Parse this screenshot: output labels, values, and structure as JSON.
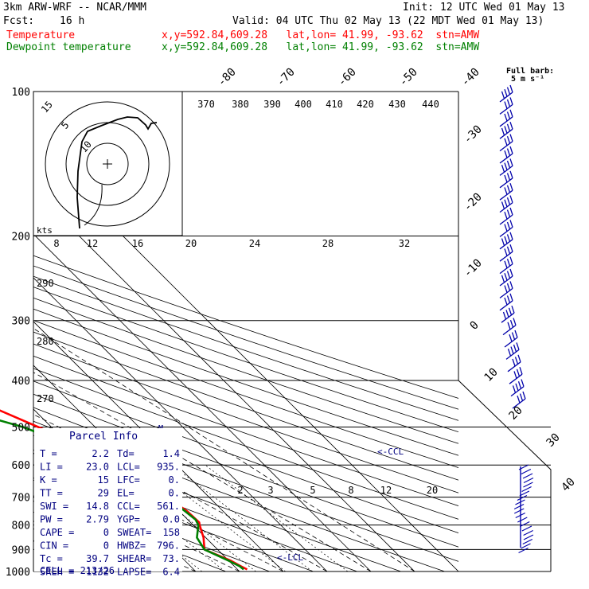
{
  "header": {
    "model": "3km ARW-WRF -- NCAR/MMM",
    "init": "Init: 12 UTC Wed 01 May 13",
    "fcst_label": "Fcst:",
    "fcst_value": "16 h",
    "valid": "Valid: 04 UTC Thu 02 May 13 (22 MDT Wed 01 May 13)",
    "legend": [
      {
        "name": "Temperature",
        "color": "#ff0000",
        "info": "x,y=592.84,609.28   lat,lon= 41.99, -93.62  stn=AMW"
      },
      {
        "name": "Dewpoint temperature",
        "color": "#008000",
        "info": "x,y=592.84,609.28   lat,lon= 41.99, -93.62  stn=AMW"
      }
    ],
    "barb_note_1": "Full barb:",
    "barb_note_2": "5 m s⁻¹"
  },
  "chart_data": {
    "type": "line",
    "diagram": "skew-T log-p",
    "pressure_ticks": [
      100,
      200,
      300,
      400,
      500,
      600,
      700,
      800,
      900,
      1000
    ],
    "temp_ticks_top": [
      -80,
      -70,
      -60,
      -50,
      -40
    ],
    "temp_ticks_right": [
      -30,
      -20,
      -10,
      0,
      10,
      20,
      30,
      40
    ],
    "theta_labels": [
      370,
      380,
      390,
      400,
      410,
      420,
      430,
      440
    ],
    "mixing_ratio_labels": [
      2,
      3,
      5,
      8,
      12,
      20
    ],
    "adiabat_labels": [
      290,
      280,
      270
    ],
    "series": [
      {
        "name": "Temperature",
        "color": "#ff0000",
        "points": [
          [
            100,
            -45.6
          ],
          [
            115,
            -48.7
          ],
          [
            130,
            -51.2
          ],
          [
            150,
            -55.3
          ],
          [
            168,
            -60
          ],
          [
            180,
            -62.5
          ],
          [
            200,
            -61
          ],
          [
            210,
            -59.5
          ],
          [
            250,
            -52.5
          ],
          [
            300,
            -43.6
          ],
          [
            350,
            -34.5
          ],
          [
            400,
            -26.5
          ],
          [
            450,
            -19.6
          ],
          [
            500,
            -13
          ],
          [
            550,
            -7
          ],
          [
            600,
            -2.5
          ],
          [
            650,
            -1
          ],
          [
            700,
            0.5
          ],
          [
            750,
            1.8
          ],
          [
            790,
            2
          ],
          [
            800,
            1.5
          ],
          [
            850,
            -0.5
          ],
          [
            900,
            -3
          ],
          [
            950,
            0.5
          ],
          [
            975,
            1.5
          ],
          [
            990,
            2.2
          ]
        ]
      },
      {
        "name": "Dewpoint temperature",
        "color": "#008000",
        "points": [
          [
            100,
            -85.5
          ],
          [
            130,
            -82
          ],
          [
            160,
            -80.5
          ],
          [
            190,
            -78.5
          ],
          [
            200,
            -77.5
          ],
          [
            250,
            -67
          ],
          [
            300,
            -58.3
          ],
          [
            340,
            -53
          ],
          [
            390,
            -47.2
          ],
          [
            420,
            -37
          ],
          [
            460,
            -26.5
          ],
          [
            500,
            -16.5
          ],
          [
            550,
            -9
          ],
          [
            600,
            -4
          ],
          [
            700,
            0.5
          ],
          [
            780,
            1.8
          ],
          [
            800,
            1.2
          ],
          [
            850,
            -2
          ],
          [
            900,
            -3
          ],
          [
            950,
            0
          ],
          [
            975,
            1.2
          ],
          [
            990,
            1.4
          ]
        ]
      }
    ],
    "hodograph": {
      "units_label": "kts",
      "ring_labels": [
        "15",
        "5",
        "10"
      ],
      "speed_ticks": [
        8,
        12,
        16,
        20,
        24,
        28,
        32
      ]
    },
    "annotations": {
      "ccl": "<-CCL",
      "lcl": "<-LCL",
      "marker": "M"
    }
  },
  "parcel_info": {
    "title": "Parcel Info",
    "rows": [
      [
        {
          "k": "T",
          "v": "2.2"
        },
        {
          "k": "Td",
          "v": "1.4"
        }
      ],
      [
        {
          "k": "LI",
          "v": "23.0"
        },
        {
          "k": "LCL",
          "v": "935."
        }
      ],
      [
        {
          "k": "K",
          "v": "15"
        },
        {
          "k": "LFC",
          "v": "0."
        }
      ],
      [
        {
          "k": "TT",
          "v": "29"
        },
        {
          "k": "EL",
          "v": "0."
        }
      ],
      [
        {
          "k": "SWI",
          "v": "14.8"
        },
        {
          "k": "CCL",
          "v": "561."
        }
      ],
      [
        {
          "k": "PW",
          "v": "2.79"
        },
        {
          "k": "YGP",
          "v": "0.0"
        }
      ],
      [
        {
          "k": "CAPE",
          "v": "0"
        },
        {
          "k": "SWEAT",
          "v": "158"
        }
      ],
      [
        {
          "k": "CIN",
          "v": "0"
        },
        {
          "k": "HWBZ",
          "v": "796."
        }
      ],
      [
        {
          "k": "Tc",
          "v": "39.7"
        },
        {
          "k": "SHEAR",
          "v": "73."
        }
      ],
      [
        {
          "k": "SREH",
          "v": "1132"
        },
        {
          "k": "LAPSE",
          "v": "6.4"
        }
      ]
    ],
    "cell_label": "CELL",
    "cell_value": "213/26"
  }
}
